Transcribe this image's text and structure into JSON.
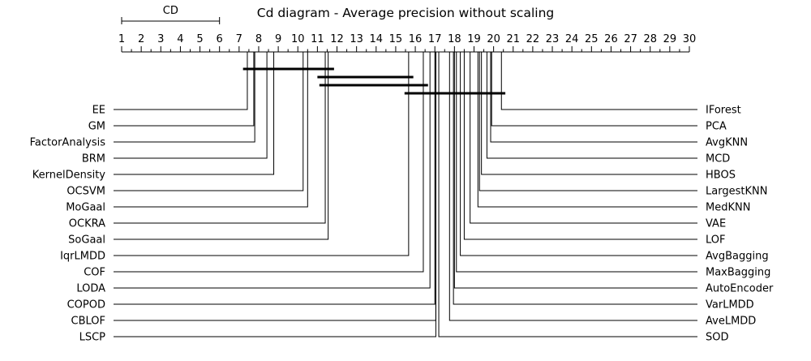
{
  "chart_data": {
    "type": "critical-difference-diagram",
    "title": "Cd diagram - Average precision without scaling",
    "cd_label": "CD",
    "cd_value": 5,
    "axis": {
      "min": 1,
      "max": 30,
      "ticks": [
        1,
        2,
        3,
        4,
        5,
        6,
        7,
        8,
        9,
        10,
        11,
        12,
        13,
        14,
        15,
        16,
        17,
        18,
        19,
        20,
        21,
        22,
        23,
        24,
        25,
        26,
        27,
        28,
        29,
        30
      ],
      "minor_step": 0.5
    },
    "left_methods": [
      {
        "name": "EE",
        "rank": 7.42
      },
      {
        "name": "GM",
        "rank": 7.75
      },
      {
        "name": "FactorAnalysis",
        "rank": 7.8
      },
      {
        "name": "BRM",
        "rank": 8.42
      },
      {
        "name": "KernelDensity",
        "rank": 8.77
      },
      {
        "name": "OCSVM",
        "rank": 10.27
      },
      {
        "name": "MoGaal",
        "rank": 10.5
      },
      {
        "name": "OCKRA",
        "rank": 11.4
      },
      {
        "name": "SoGaal",
        "rank": 11.55
      },
      {
        "name": "IqrLMDD",
        "rank": 15.66
      },
      {
        "name": "COF",
        "rank": 16.41
      },
      {
        "name": "LODA",
        "rank": 16.75
      },
      {
        "name": "COPOD",
        "rank": 17.0
      },
      {
        "name": "CBLOF",
        "rank": 17.05
      },
      {
        "name": "LSCP",
        "rank": 17.05
      }
    ],
    "right_methods": [
      {
        "name": "IForest",
        "rank": 20.4
      },
      {
        "name": "PCA",
        "rank": 19.9
      },
      {
        "name": "AvgKNN",
        "rank": 19.85
      },
      {
        "name": "MCD",
        "rank": 19.66
      },
      {
        "name": "HBOS",
        "rank": 19.38
      },
      {
        "name": "LargestKNN",
        "rank": 19.28
      },
      {
        "name": "MedKNN",
        "rank": 19.2
      },
      {
        "name": "VAE",
        "rank": 18.8
      },
      {
        "name": "LOF",
        "rank": 18.5
      },
      {
        "name": "AvgBagging",
        "rank": 18.3
      },
      {
        "name": "MaxBagging",
        "rank": 18.1
      },
      {
        "name": "AutoEncoder",
        "rank": 18.0
      },
      {
        "name": "VarLMDD",
        "rank": 17.95
      },
      {
        "name": "AveLMDD",
        "rank": 17.75
      },
      {
        "name": "SOD",
        "rank": 17.2
      }
    ],
    "cliques": [
      {
        "from": 7.2,
        "to": 11.85
      },
      {
        "from": 11.0,
        "to": 15.9
      },
      {
        "from": 11.1,
        "to": 16.65
      },
      {
        "from": 15.45,
        "to": 20.6
      }
    ]
  }
}
